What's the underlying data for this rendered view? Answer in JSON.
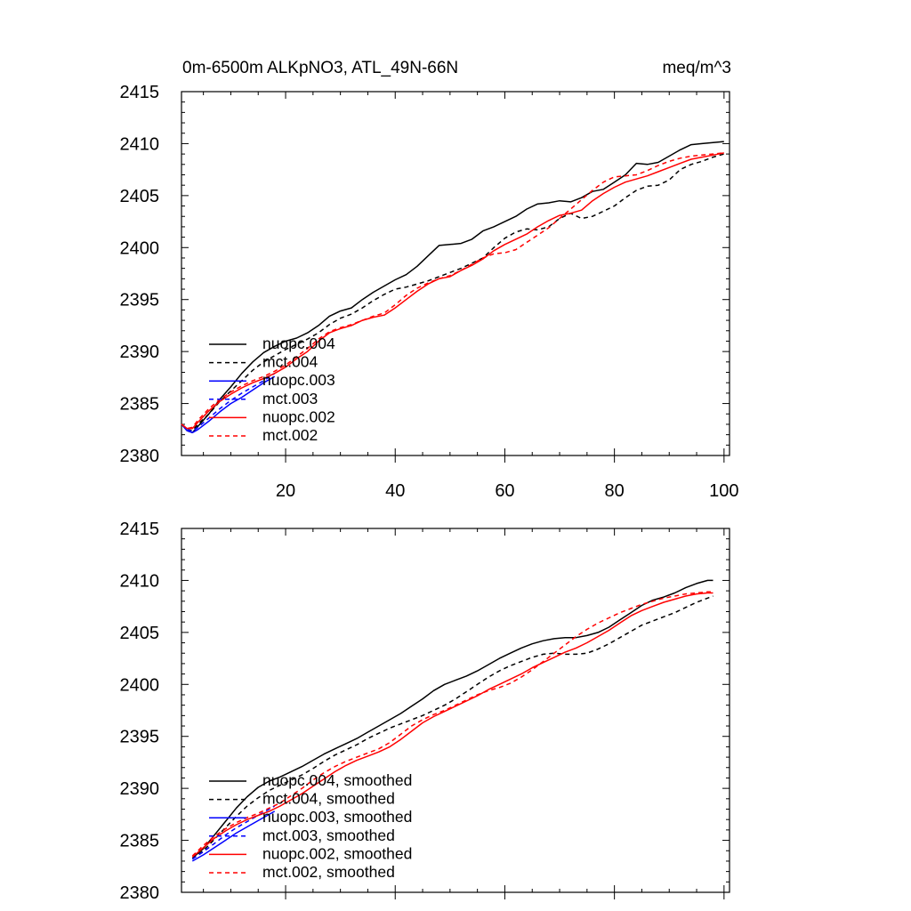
{
  "chart_data": [
    {
      "type": "line",
      "title": "0m-6500m ALKpNO3, ATL_49N-66N",
      "units": "meq/m^3",
      "xlabel": "",
      "ylabel": "",
      "xlim": [
        1,
        101
      ],
      "ylim": [
        2380,
        2415
      ],
      "yticks": [
        "2380",
        "2385",
        "2390",
        "2395",
        "2400",
        "2405",
        "2410",
        "2415"
      ],
      "xticks": [
        "20",
        "40",
        "60",
        "80",
        "100"
      ],
      "grid": false,
      "legend_position": "lower-left",
      "series": [
        {
          "name": "nuopc.004",
          "color": "#000000",
          "dash": "solid",
          "x": [
            1,
            2,
            3,
            4,
            6,
            8,
            10,
            12,
            14,
            16,
            18,
            20,
            22,
            24,
            26,
            28,
            30,
            32,
            34,
            36,
            38,
            40,
            42,
            44,
            46,
            48,
            50,
            52,
            54,
            56,
            58,
            60,
            62,
            64,
            66,
            68,
            70,
            72,
            74,
            76,
            78,
            80,
            82,
            84,
            86,
            88,
            90,
            92,
            94,
            96,
            98,
            100
          ],
          "y": [
            2383.0,
            2382.4,
            2382.2,
            2382.8,
            2384.0,
            2385.4,
            2386.6,
            2387.9,
            2389.0,
            2389.9,
            2390.5,
            2391.0,
            2391.3,
            2391.8,
            2392.5,
            2393.4,
            2393.9,
            2394.2,
            2395.0,
            2395.7,
            2396.3,
            2396.9,
            2397.4,
            2398.2,
            2399.2,
            2400.2,
            2400.3,
            2400.4,
            2400.8,
            2401.6,
            2402.0,
            2402.5,
            2403.0,
            2403.7,
            2404.2,
            2404.3,
            2404.5,
            2404.4,
            2404.8,
            2405.4,
            2405.6,
            2406.3,
            2407.0,
            2408.1,
            2408.0,
            2408.2,
            2408.8,
            2409.4,
            2409.9,
            2410.0,
            2410.1,
            2410.2
          ]
        },
        {
          "name": "mct.004",
          "color": "#000000",
          "dash": "dashed",
          "x": [
            1,
            2,
            3,
            4,
            6,
            8,
            10,
            12,
            14,
            16,
            18,
            20,
            22,
            24,
            26,
            28,
            30,
            32,
            34,
            36,
            38,
            40,
            42,
            44,
            46,
            48,
            50,
            52,
            54,
            56,
            58,
            60,
            62,
            64,
            66,
            68,
            70,
            72,
            74,
            76,
            78,
            80,
            82,
            84,
            86,
            88,
            90,
            92,
            94,
            96,
            98,
            100
          ],
          "y": [
            2383.0,
            2382.5,
            2382.4,
            2383.0,
            2384.0,
            2385.2,
            2386.2,
            2387.2,
            2388.2,
            2389.0,
            2389.6,
            2390.2,
            2390.7,
            2391.2,
            2391.8,
            2392.6,
            2393.2,
            2393.6,
            2394.2,
            2394.9,
            2395.5,
            2396.0,
            2396.2,
            2396.5,
            2396.8,
            2397.2,
            2397.6,
            2398.0,
            2398.5,
            2399.0,
            2400.0,
            2400.9,
            2401.5,
            2401.8,
            2401.7,
            2402.0,
            2402.8,
            2403.3,
            2402.8,
            2403.0,
            2403.5,
            2404.0,
            2404.8,
            2405.5,
            2405.9,
            2406.0,
            2406.5,
            2407.5,
            2408.0,
            2408.3,
            2408.7,
            2409.0
          ]
        },
        {
          "name": "nuopc.003",
          "color": "#0000ff",
          "dash": "solid",
          "x": [
            1,
            2,
            3,
            4,
            6,
            8,
            10,
            12,
            14,
            16,
            18
          ],
          "y": [
            2383.0,
            2382.4,
            2382.2,
            2382.5,
            2383.3,
            2384.2,
            2385.0,
            2385.6,
            2386.3,
            2387.0,
            2387.6
          ]
        },
        {
          "name": "mct.003",
          "color": "#0000ff",
          "dash": "dashed",
          "x": [
            1,
            2,
            3,
            4,
            6,
            8,
            10,
            12,
            14,
            16,
            18
          ],
          "y": [
            2383.0,
            2382.5,
            2382.3,
            2382.7,
            2383.6,
            2384.5,
            2385.3,
            2386.0,
            2386.6,
            2387.2,
            2387.9
          ]
        },
        {
          "name": "nuopc.002",
          "color": "#ff0000",
          "dash": "solid",
          "x": [
            1,
            2,
            3,
            4,
            6,
            8,
            10,
            12,
            14,
            16,
            18,
            20,
            22,
            24,
            26,
            28,
            30,
            32,
            34,
            36,
            38,
            40,
            42,
            44,
            46,
            48,
            50,
            52,
            54,
            56,
            58,
            60,
            62,
            64,
            66,
            68,
            70,
            72,
            74,
            76,
            78,
            80,
            82,
            84,
            86,
            88,
            90,
            92,
            94,
            96,
            98,
            100
          ],
          "y": [
            2383.0,
            2382.6,
            2382.6,
            2383.2,
            2384.3,
            2385.2,
            2385.9,
            2386.5,
            2387.0,
            2387.4,
            2387.9,
            2388.5,
            2389.3,
            2390.0,
            2391.0,
            2391.8,
            2392.2,
            2392.5,
            2393.0,
            2393.3,
            2393.5,
            2394.2,
            2395.0,
            2395.8,
            2396.5,
            2397.0,
            2397.2,
            2397.8,
            2398.3,
            2398.9,
            2399.7,
            2400.3,
            2400.8,
            2401.3,
            2402.0,
            2402.6,
            2403.1,
            2403.3,
            2403.6,
            2404.5,
            2405.2,
            2405.8,
            2406.3,
            2406.6,
            2406.9,
            2407.3,
            2407.7,
            2408.1,
            2408.5,
            2408.7,
            2408.9,
            2409.1
          ]
        },
        {
          "name": "mct.002",
          "color": "#ff0000",
          "dash": "dashed",
          "x": [
            1,
            2,
            3,
            4,
            6,
            8,
            10,
            12,
            14,
            16,
            18,
            20,
            22,
            24,
            26,
            28,
            30,
            32,
            34,
            36,
            38,
            40,
            42,
            44,
            46,
            48,
            50,
            52,
            54,
            56,
            58,
            60,
            62,
            64,
            66,
            68,
            70,
            72,
            74,
            76,
            78,
            80,
            82,
            84,
            86,
            88,
            90,
            92,
            94,
            96,
            98,
            100
          ],
          "y": [
            2383.0,
            2382.6,
            2382.7,
            2383.4,
            2384.5,
            2385.4,
            2386.1,
            2386.7,
            2387.2,
            2387.6,
            2388.1,
            2388.7,
            2389.5,
            2390.3,
            2391.2,
            2391.9,
            2392.3,
            2392.6,
            2393.0,
            2393.4,
            2393.7,
            2394.5,
            2395.4,
            2396.1,
            2396.6,
            2397.0,
            2397.3,
            2397.8,
            2398.4,
            2399.0,
            2399.4,
            2399.5,
            2399.8,
            2400.5,
            2401.2,
            2401.9,
            2402.8,
            2403.7,
            2404.6,
            2405.5,
            2406.3,
            2406.8,
            2406.9,
            2407.0,
            2407.4,
            2407.9,
            2408.3,
            2408.6,
            2408.8,
            2408.9,
            2409.0,
            2409.1
          ]
        }
      ]
    },
    {
      "type": "line",
      "title": "",
      "units": "",
      "xlabel": "",
      "ylabel": "",
      "xlim": [
        1,
        101
      ],
      "ylim": [
        2380,
        2415
      ],
      "yticks": [
        "2380",
        "2385",
        "2390",
        "2395",
        "2400",
        "2405",
        "2410",
        "2415"
      ],
      "xticks": [],
      "grid": false,
      "legend_position": "lower-left",
      "series": [
        {
          "name": "nuopc.004, smoothed",
          "color": "#000000",
          "dash": "solid",
          "x": [
            3,
            5,
            7,
            9,
            11,
            13,
            15,
            17,
            19,
            21,
            23,
            25,
            27,
            29,
            31,
            33,
            35,
            37,
            39,
            41,
            43,
            45,
            47,
            49,
            51,
            53,
            55,
            57,
            59,
            61,
            63,
            65,
            67,
            69,
            71,
            73,
            75,
            77,
            79,
            81,
            83,
            85,
            87,
            89,
            91,
            93,
            95,
            97,
            98
          ],
          "y": [
            2383.3,
            2384.2,
            2385.5,
            2386.8,
            2388.1,
            2389.2,
            2390.1,
            2390.7,
            2391.1,
            2391.6,
            2392.1,
            2392.7,
            2393.3,
            2393.8,
            2394.3,
            2394.8,
            2395.4,
            2396.0,
            2396.6,
            2397.2,
            2397.9,
            2398.6,
            2399.4,
            2400.0,
            2400.4,
            2400.8,
            2401.3,
            2401.9,
            2402.5,
            2403.0,
            2403.5,
            2403.9,
            2404.2,
            2404.4,
            2404.5,
            2404.5,
            2404.7,
            2405.0,
            2405.5,
            2406.2,
            2406.9,
            2407.6,
            2408.1,
            2408.4,
            2408.8,
            2409.3,
            2409.7,
            2410.0,
            2410.0
          ]
        },
        {
          "name": "mct.004, smoothed",
          "color": "#000000",
          "dash": "dashed",
          "x": [
            3,
            5,
            7,
            9,
            11,
            13,
            15,
            17,
            19,
            21,
            23,
            25,
            27,
            29,
            31,
            33,
            35,
            37,
            39,
            41,
            43,
            45,
            47,
            49,
            51,
            53,
            55,
            57,
            59,
            61,
            63,
            65,
            67,
            69,
            71,
            73,
            75,
            77,
            79,
            81,
            83,
            85,
            87,
            89,
            91,
            93,
            95,
            97,
            98
          ],
          "y": [
            2383.2,
            2384.0,
            2385.1,
            2386.2,
            2387.3,
            2388.3,
            2389.1,
            2389.8,
            2390.3,
            2390.8,
            2391.3,
            2391.9,
            2392.6,
            2393.2,
            2393.7,
            2394.2,
            2394.8,
            2395.3,
            2395.8,
            2396.2,
            2396.6,
            2397.0,
            2397.5,
            2398.0,
            2398.6,
            2399.3,
            2400.0,
            2400.7,
            2401.3,
            2401.8,
            2402.2,
            2402.6,
            2402.9,
            2403.0,
            2402.9,
            2402.9,
            2403.0,
            2403.4,
            2403.9,
            2404.5,
            2405.1,
            2405.7,
            2406.1,
            2406.5,
            2406.9,
            2407.4,
            2407.9,
            2408.3,
            2408.5
          ]
        },
        {
          "name": "nuopc.003, smoothed",
          "color": "#0000ff",
          "dash": "solid",
          "x": [
            3,
            5,
            7,
            9,
            11,
            13,
            15,
            17,
            18
          ],
          "y": [
            2383.0,
            2383.6,
            2384.3,
            2385.0,
            2385.7,
            2386.3,
            2386.9,
            2387.5,
            2387.8
          ]
        },
        {
          "name": "mct.003, smoothed",
          "color": "#0000ff",
          "dash": "dashed",
          "x": [
            3,
            5,
            7,
            9,
            11,
            13,
            15,
            17,
            18
          ],
          "y": [
            2383.2,
            2383.9,
            2384.7,
            2385.5,
            2386.2,
            2386.8,
            2387.4,
            2388.0,
            2388.3
          ]
        },
        {
          "name": "nuopc.002, smoothed",
          "color": "#ff0000",
          "dash": "solid",
          "x": [
            3,
            5,
            7,
            9,
            11,
            13,
            15,
            17,
            19,
            21,
            23,
            25,
            27,
            29,
            31,
            33,
            35,
            37,
            39,
            41,
            43,
            45,
            47,
            49,
            51,
            53,
            55,
            57,
            59,
            61,
            63,
            65,
            67,
            69,
            71,
            73,
            75,
            77,
            79,
            81,
            83,
            85,
            87,
            89,
            91,
            93,
            95,
            97,
            98
          ],
          "y": [
            2383.4,
            2384.3,
            2385.2,
            2385.9,
            2386.5,
            2387.0,
            2387.4,
            2387.8,
            2388.3,
            2388.9,
            2389.5,
            2390.2,
            2390.9,
            2391.6,
            2392.2,
            2392.7,
            2393.1,
            2393.5,
            2394.0,
            2394.7,
            2395.5,
            2396.3,
            2396.9,
            2397.4,
            2397.9,
            2398.4,
            2398.9,
            2399.5,
            2400.0,
            2400.5,
            2401.0,
            2401.6,
            2402.1,
            2402.6,
            2403.1,
            2403.5,
            2404.0,
            2404.6,
            2405.2,
            2405.9,
            2406.6,
            2407.1,
            2407.5,
            2407.9,
            2408.2,
            2408.5,
            2408.7,
            2408.8,
            2408.8
          ]
        },
        {
          "name": "mct.002, smoothed",
          "color": "#ff0000",
          "dash": "dashed",
          "x": [
            3,
            5,
            7,
            9,
            11,
            13,
            15,
            17,
            19,
            21,
            23,
            25,
            27,
            29,
            31,
            33,
            35,
            37,
            39,
            41,
            43,
            45,
            47,
            49,
            51,
            53,
            55,
            57,
            59,
            61,
            63,
            65,
            67,
            69,
            71,
            73,
            75,
            77,
            79,
            81,
            83,
            85,
            87,
            89,
            91,
            93,
            95,
            97,
            98
          ],
          "y": [
            2383.5,
            2384.5,
            2385.4,
            2386.1,
            2386.7,
            2387.2,
            2387.6,
            2388.1,
            2388.6,
            2389.3,
            2390.0,
            2390.8,
            2391.5,
            2392.1,
            2392.6,
            2393.0,
            2393.4,
            2393.8,
            2394.4,
            2395.2,
            2396.0,
            2396.6,
            2397.1,
            2397.5,
            2398.0,
            2398.5,
            2399.0,
            2399.4,
            2399.7,
            2400.1,
            2400.7,
            2401.4,
            2402.2,
            2403.0,
            2403.8,
            2404.6,
            2405.3,
            2405.9,
            2406.4,
            2406.9,
            2407.3,
            2407.7,
            2408.0,
            2408.3,
            2408.5,
            2408.7,
            2408.8,
            2408.9,
            2408.9
          ]
        }
      ]
    }
  ]
}
